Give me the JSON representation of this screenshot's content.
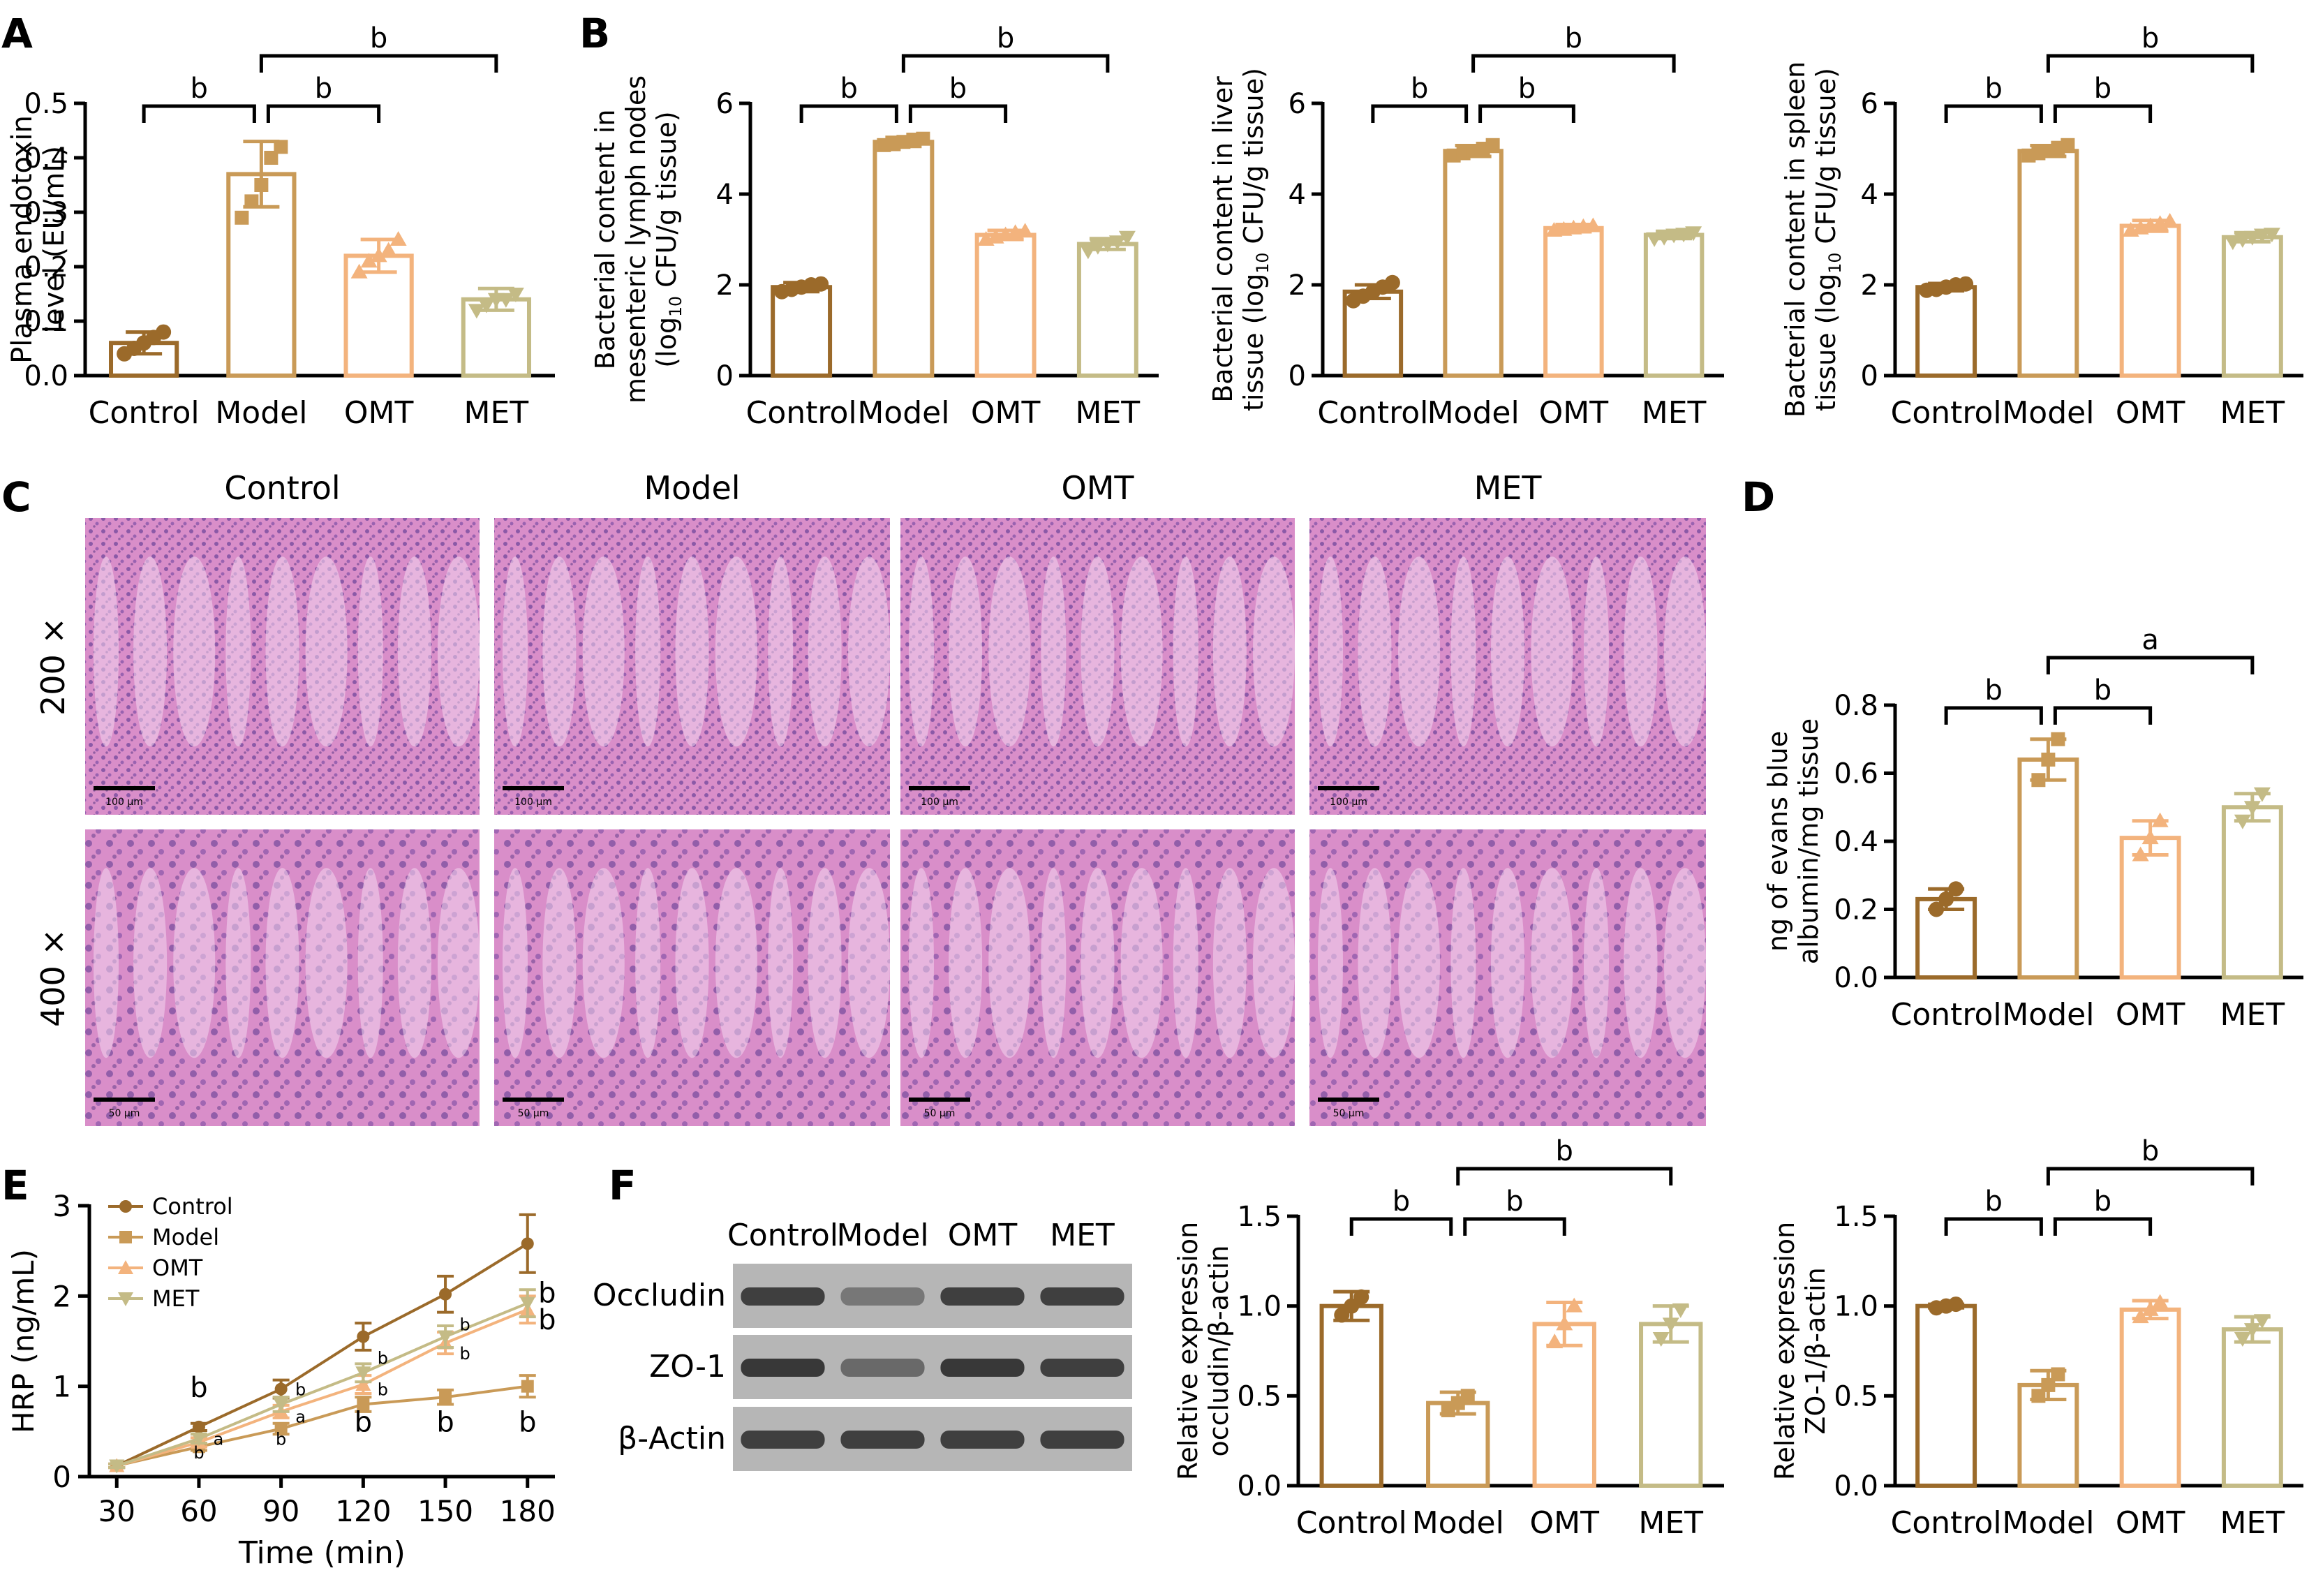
{
  "panel_labels": {
    "A": "A",
    "B": "B",
    "C": "C",
    "D": "D",
    "E": "E",
    "F": "F"
  },
  "palette": {
    "Control": "#9b6a2a",
    "Model": "#c99a57",
    "OMT": "#f3b37d",
    "MET": "#c4bb86",
    "axis": "#000000",
    "blot_bg": "#b6b6b6",
    "band": "#2a2a2a"
  },
  "groups": [
    "Control",
    "Model",
    "OMT",
    "MET"
  ],
  "chart_data": [
    {
      "id": "A",
      "type": "bar",
      "title": "",
      "ylabel": [
        "Plasma endotoxin",
        "level (EU/mL)"
      ],
      "categories": [
        "Control",
        "Model",
        "OMT",
        "MET"
      ],
      "values": [
        0.06,
        0.37,
        0.22,
        0.14
      ],
      "errors": [
        0.02,
        0.06,
        0.03,
        0.02
      ],
      "points": [
        [
          0.04,
          0.05,
          0.06,
          0.07,
          0.08
        ],
        [
          0.29,
          0.32,
          0.35,
          0.4,
          0.42
        ],
        [
          0.19,
          0.21,
          0.22,
          0.23,
          0.25
        ],
        [
          0.12,
          0.13,
          0.14,
          0.14,
          0.15
        ]
      ],
      "ylim": [
        0,
        0.5
      ],
      "yticks": [
        0.0,
        0.1,
        0.2,
        0.3,
        0.4,
        0.5
      ],
      "ytick_labels": [
        "0.0",
        "0.1",
        "0.2",
        "0.3",
        "0.4",
        "0.5"
      ],
      "brackets": [
        {
          "from": 0,
          "to": 1,
          "label": "b",
          "level": 0
        },
        {
          "from": 1,
          "to": 2,
          "label": "b",
          "level": 0
        },
        {
          "from": 1,
          "to": 3,
          "label": "b",
          "level": 1
        }
      ]
    },
    {
      "id": "B1",
      "type": "bar",
      "ylabel": [
        "Bacterial content in",
        "mesenteric lymph nodes",
        "(log10 CFU/g tissue)"
      ],
      "categories": [
        "Control",
        "Model",
        "OMT",
        "MET"
      ],
      "values": [
        1.95,
        5.15,
        3.1,
        2.9
      ],
      "errors": [
        0.1,
        0.1,
        0.1,
        0.12
      ],
      "points": [
        [
          1.85,
          1.9,
          1.95,
          2.0,
          2.02
        ],
        [
          5.08,
          5.1,
          5.15,
          5.2,
          5.22
        ],
        [
          3.0,
          3.05,
          3.1,
          3.15,
          3.18
        ],
        [
          2.75,
          2.85,
          2.9,
          2.95,
          3.05
        ]
      ],
      "ylim": [
        0,
        6
      ],
      "yticks": [
        0,
        2,
        4,
        6
      ],
      "ytick_labels": [
        "0",
        "2",
        "4",
        "6"
      ],
      "brackets": [
        {
          "from": 0,
          "to": 1,
          "label": "b",
          "level": 0
        },
        {
          "from": 1,
          "to": 2,
          "label": "b",
          "level": 0
        },
        {
          "from": 1,
          "to": 3,
          "label": "b",
          "level": 1
        }
      ]
    },
    {
      "id": "B2",
      "type": "bar",
      "ylabel": [
        "Bacterial content in liver",
        "tissue (log10 CFU/g tissue)"
      ],
      "categories": [
        "Control",
        "Model",
        "OMT",
        "MET"
      ],
      "values": [
        1.85,
        4.95,
        3.25,
        3.1
      ],
      "errors": [
        0.15,
        0.12,
        0.08,
        0.08
      ],
      "points": [
        [
          1.65,
          1.75,
          1.85,
          1.95,
          2.05
        ],
        [
          4.85,
          4.9,
          4.95,
          5.0,
          5.08
        ],
        [
          3.2,
          3.22,
          3.25,
          3.28,
          3.3
        ],
        [
          3.02,
          3.05,
          3.1,
          3.12,
          3.15
        ]
      ],
      "ylim": [
        0,
        6
      ],
      "yticks": [
        0,
        2,
        4,
        6
      ],
      "ytick_labels": [
        "0",
        "2",
        "4",
        "6"
      ],
      "brackets": [
        {
          "from": 0,
          "to": 1,
          "label": "b",
          "level": 0
        },
        {
          "from": 1,
          "to": 2,
          "label": "b",
          "level": 0
        },
        {
          "from": 1,
          "to": 3,
          "label": "b",
          "level": 1
        }
      ]
    },
    {
      "id": "B3",
      "type": "bar",
      "ylabel": [
        "Bacterial content in spleen",
        "tissue (log10 CFU/g tissue)"
      ],
      "categories": [
        "Control",
        "Model",
        "OMT",
        "MET"
      ],
      "values": [
        1.95,
        4.95,
        3.3,
        3.05
      ],
      "errors": [
        0.08,
        0.12,
        0.12,
        0.1
      ],
      "points": [
        [
          1.88,
          1.9,
          1.95,
          2.0,
          2.02
        ],
        [
          4.85,
          4.9,
          4.95,
          5.02,
          5.08
        ],
        [
          3.2,
          3.25,
          3.3,
          3.35,
          3.4
        ],
        [
          2.95,
          3.0,
          3.05,
          3.1,
          3.12
        ]
      ],
      "ylim": [
        0,
        6
      ],
      "yticks": [
        0,
        2,
        4,
        6
      ],
      "ytick_labels": [
        "0",
        "2",
        "4",
        "6"
      ],
      "brackets": [
        {
          "from": 0,
          "to": 1,
          "label": "b",
          "level": 0
        },
        {
          "from": 1,
          "to": 2,
          "label": "b",
          "level": 0
        },
        {
          "from": 1,
          "to": 3,
          "label": "b",
          "level": 1
        }
      ]
    },
    {
      "id": "D",
      "type": "bar",
      "ylabel": [
        "ng of evans blue",
        "albumin/mg tissue"
      ],
      "categories": [
        "Control",
        "Model",
        "OMT",
        "MET"
      ],
      "values": [
        0.23,
        0.64,
        0.41,
        0.5
      ],
      "errors": [
        0.03,
        0.06,
        0.05,
        0.04
      ],
      "points": [
        [
          0.2,
          0.23,
          0.26
        ],
        [
          0.58,
          0.64,
          0.7
        ],
        [
          0.36,
          0.41,
          0.46
        ],
        [
          0.46,
          0.5,
          0.54
        ]
      ],
      "ylim": [
        0,
        0.8
      ],
      "yticks": [
        0.0,
        0.2,
        0.4,
        0.6,
        0.8
      ],
      "ytick_labels": [
        "0.0",
        "0.2",
        "0.4",
        "0.6",
        "0.8"
      ],
      "brackets": [
        {
          "from": 0,
          "to": 1,
          "label": "b",
          "level": 0
        },
        {
          "from": 1,
          "to": 2,
          "label": "b",
          "level": 0
        },
        {
          "from": 1,
          "to": 3,
          "label": "a",
          "level": 1
        }
      ]
    },
    {
      "id": "F1",
      "type": "bar",
      "ylabel": [
        "Relative expression",
        "occludin/β-actin"
      ],
      "categories": [
        "Control",
        "Model",
        "OMT",
        "MET"
      ],
      "values": [
        1.0,
        0.46,
        0.9,
        0.9
      ],
      "errors": [
        0.08,
        0.06,
        0.12,
        0.1
      ],
      "points": [
        [
          0.95,
          1.0,
          1.05
        ],
        [
          0.42,
          0.46,
          0.5
        ],
        [
          0.8,
          0.9,
          1.0
        ],
        [
          0.82,
          0.9,
          0.98
        ]
      ],
      "ylim": [
        0,
        1.5
      ],
      "yticks": [
        0.0,
        0.5,
        1.0,
        1.5
      ],
      "ytick_labels": [
        "0.0",
        "0.5",
        "1.0",
        "1.5"
      ],
      "brackets": [
        {
          "from": 0,
          "to": 1,
          "label": "b",
          "level": 0
        },
        {
          "from": 1,
          "to": 2,
          "label": "b",
          "level": 0
        },
        {
          "from": 1,
          "to": 3,
          "label": "b",
          "level": 1
        }
      ]
    },
    {
      "id": "F2",
      "type": "bar",
      "ylabel": [
        "Relative expression",
        "ZO-1/β-actin"
      ],
      "categories": [
        "Control",
        "Model",
        "OMT",
        "MET"
      ],
      "values": [
        1.0,
        0.56,
        0.98,
        0.87
      ],
      "errors": [
        0.01,
        0.08,
        0.05,
        0.07
      ],
      "points": [
        [
          0.99,
          1.0,
          1.01
        ],
        [
          0.5,
          0.56,
          0.62
        ],
        [
          0.94,
          0.98,
          1.02
        ],
        [
          0.82,
          0.87,
          0.92
        ]
      ],
      "ylim": [
        0,
        1.5
      ],
      "yticks": [
        0.0,
        0.5,
        1.0,
        1.5
      ],
      "ytick_labels": [
        "0.0",
        "0.5",
        "1.0",
        "1.5"
      ],
      "brackets": [
        {
          "from": 0,
          "to": 1,
          "label": "b",
          "level": 0
        },
        {
          "from": 1,
          "to": 2,
          "label": "b",
          "level": 0
        },
        {
          "from": 1,
          "to": 3,
          "label": "b",
          "level": 1
        }
      ]
    },
    {
      "id": "E",
      "type": "line",
      "xlabel": "Time (min)",
      "ylabel": "HRP (ng/mL)",
      "x": [
        30,
        60,
        90,
        120,
        150,
        180
      ],
      "xlim": [
        20,
        190
      ],
      "ylim": [
        0,
        3
      ],
      "xticks": [
        30,
        60,
        90,
        120,
        150,
        180
      ],
      "yticks": [
        0,
        1,
        2,
        3
      ],
      "series": [
        {
          "name": "Control",
          "marker": "circle",
          "values": [
            0.12,
            0.55,
            0.97,
            1.55,
            2.02,
            2.58
          ],
          "errors": [
            0.02,
            0.04,
            0.1,
            0.15,
            0.2,
            0.32
          ]
        },
        {
          "name": "Model",
          "marker": "square",
          "values": [
            0.12,
            0.33,
            0.53,
            0.8,
            0.88,
            1.0
          ],
          "errors": [
            0.02,
            0.04,
            0.06,
            0.08,
            0.08,
            0.12
          ]
        },
        {
          "name": "OMT",
          "marker": "triangle-up",
          "values": [
            0.12,
            0.38,
            0.72,
            1.02,
            1.48,
            1.85
          ],
          "errors": [
            0.02,
            0.05,
            0.07,
            0.1,
            0.12,
            0.15
          ]
        },
        {
          "name": "MET",
          "marker": "triangle-down",
          "values": [
            0.12,
            0.42,
            0.8,
            1.15,
            1.55,
            1.92
          ],
          "errors": [
            0.02,
            0.05,
            0.08,
            0.1,
            0.12,
            0.15
          ]
        }
      ],
      "annotations": [
        {
          "x": 60,
          "y": 0.88,
          "text": "b",
          "big": true
        },
        {
          "x": 60,
          "y": 0.2,
          "text": "b",
          "big": false
        },
        {
          "x": 60,
          "y": 0.35,
          "text": "a",
          "big": false,
          "dx": 1
        },
        {
          "x": 90,
          "y": 0.35,
          "text": "b",
          "big": false
        },
        {
          "x": 90,
          "y": 0.6,
          "text": "a",
          "big": false,
          "dx": 1
        },
        {
          "x": 90,
          "y": 0.9,
          "text": "b",
          "big": false,
          "dx": 1
        },
        {
          "x": 120,
          "y": 0.5,
          "text": "b",
          "big": true
        },
        {
          "x": 120,
          "y": 0.9,
          "text": "b",
          "big": false,
          "dx": 1
        },
        {
          "x": 120,
          "y": 1.25,
          "text": "b",
          "big": false,
          "dx": 1
        },
        {
          "x": 150,
          "y": 0.5,
          "text": "b",
          "big": true
        },
        {
          "x": 150,
          "y": 1.3,
          "text": "b",
          "big": false,
          "dx": 1
        },
        {
          "x": 150,
          "y": 1.62,
          "text": "b",
          "big": false,
          "dx": 1
        },
        {
          "x": 180,
          "y": 0.5,
          "text": "b",
          "big": true
        },
        {
          "x": 180,
          "y": 1.63,
          "text": "b",
          "big": true,
          "dx": 1
        },
        {
          "x": 180,
          "y": 1.93,
          "text": "b",
          "big": true,
          "dx": 1
        }
      ]
    }
  ],
  "histology": {
    "columns": [
      "Control",
      "Model",
      "OMT",
      "MET"
    ],
    "rows": [
      "200 ×",
      "400 ×"
    ],
    "scale_bars": [
      [
        "100 μm",
        "100 μm",
        "100 μm",
        "100 μm"
      ],
      [
        "50 μm",
        "50 μm",
        "50 μm",
        "50 μm"
      ]
    ]
  },
  "western_blot": {
    "lanes": [
      "Control",
      "Model",
      "OMT",
      "MET"
    ],
    "bands": [
      {
        "name": "Occludin",
        "intensity": [
          0.85,
          0.45,
          0.85,
          0.85
        ]
      },
      {
        "name": "ZO-1",
        "intensity": [
          0.9,
          0.55,
          0.9,
          0.85
        ]
      },
      {
        "name": "β-Actin",
        "intensity": [
          0.85,
          0.85,
          0.85,
          0.85
        ]
      }
    ]
  }
}
